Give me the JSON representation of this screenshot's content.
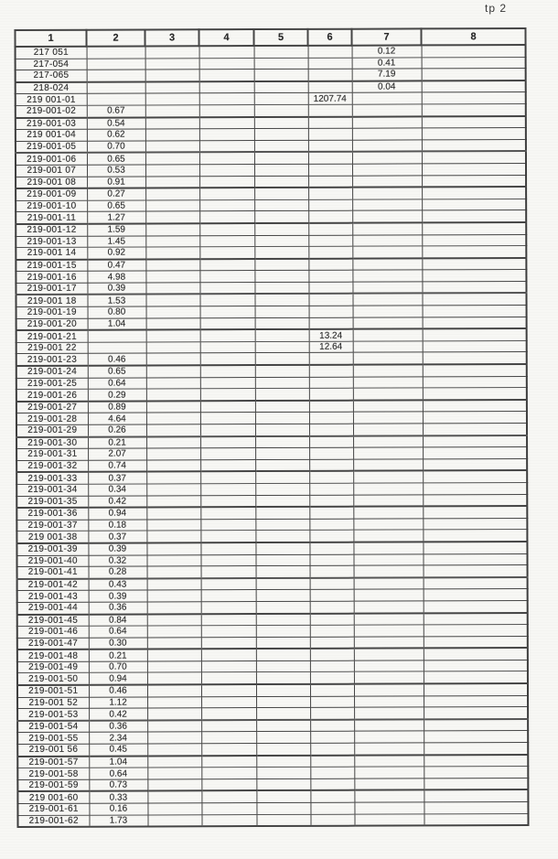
{
  "page": {
    "corner_label": "tp 2"
  },
  "table": {
    "headers": [
      "1",
      "2",
      "3",
      "4",
      "5",
      "6",
      "7",
      "8"
    ],
    "rows": [
      {
        "id": "217 051",
        "cells": [
          "",
          "",
          "",
          "",
          "",
          "0.12",
          ""
        ]
      },
      {
        "id": "217-054",
        "cells": [
          "",
          "",
          "",
          "",
          "",
          "0.41",
          ""
        ]
      },
      {
        "id": "217-065",
        "cells": [
          "",
          "",
          "",
          "",
          "",
          "7.19",
          ""
        ]
      },
      {
        "id": "218-024",
        "cells": [
          "",
          "",
          "",
          "",
          "",
          "0.04",
          ""
        ]
      },
      {
        "id": "219 001-01",
        "cells": [
          "",
          "",
          "",
          "",
          "1207.74",
          "",
          ""
        ]
      },
      {
        "id": "219-001-02",
        "cells": [
          "0.67",
          "",
          "",
          "",
          "",
          "",
          ""
        ]
      },
      {
        "id": "219-001-03",
        "cells": [
          "0.54",
          "",
          "",
          "",
          "",
          "",
          ""
        ]
      },
      {
        "id": "219 001-04",
        "cells": [
          "0.62",
          "",
          "",
          "",
          "",
          "",
          ""
        ]
      },
      {
        "id": "219-001-05",
        "cells": [
          "0.70",
          "",
          "",
          "",
          "",
          "",
          ""
        ]
      },
      {
        "id": "219-001-06",
        "cells": [
          "0.65",
          "",
          "",
          "",
          "",
          "",
          ""
        ]
      },
      {
        "id": "219-001 07",
        "cells": [
          "0.53",
          "",
          "",
          "",
          "",
          "",
          ""
        ]
      },
      {
        "id": "219-001 08",
        "cells": [
          "0.91",
          "",
          "",
          "",
          "",
          "",
          ""
        ]
      },
      {
        "id": "219-001-09",
        "cells": [
          "0.27",
          "",
          "",
          "",
          "",
          "",
          ""
        ]
      },
      {
        "id": "219-001-10",
        "cells": [
          "0.65",
          "",
          "",
          "",
          "",
          "",
          ""
        ]
      },
      {
        "id": "219-001-11",
        "cells": [
          "1.27",
          "",
          "",
          "",
          "",
          "",
          ""
        ]
      },
      {
        "id": "219-001-12",
        "cells": [
          "1.59",
          "",
          "",
          "",
          "",
          "",
          ""
        ]
      },
      {
        "id": "219-001-13",
        "cells": [
          "1.45",
          "",
          "",
          "",
          "",
          "",
          ""
        ]
      },
      {
        "id": "219-001 14",
        "cells": [
          "0.92",
          "",
          "",
          "",
          "",
          "",
          ""
        ]
      },
      {
        "id": "219-001-15",
        "cells": [
          "0.47",
          "",
          "",
          "",
          "",
          "",
          ""
        ]
      },
      {
        "id": "219-001-16",
        "cells": [
          "4.98",
          "",
          "",
          "",
          "",
          "",
          ""
        ]
      },
      {
        "id": "219-001-17",
        "cells": [
          "0.39",
          "",
          "",
          "",
          "",
          "",
          ""
        ]
      },
      {
        "id": "219-001 18",
        "cells": [
          "1.53",
          "",
          "",
          "",
          "",
          "",
          ""
        ]
      },
      {
        "id": "219-001-19",
        "cells": [
          "0.80",
          "",
          "",
          "",
          "",
          "",
          ""
        ]
      },
      {
        "id": "219-001-20",
        "cells": [
          "1.04",
          "",
          "",
          "",
          "",
          "",
          ""
        ]
      },
      {
        "id": "219-001-21",
        "cells": [
          "",
          "",
          "",
          "",
          "13.24",
          "",
          ""
        ]
      },
      {
        "id": "219-001 22",
        "cells": [
          "",
          "",
          "",
          "",
          "12.64",
          "",
          ""
        ]
      },
      {
        "id": "219-001-23",
        "cells": [
          "0.46",
          "",
          "",
          "",
          "",
          "",
          ""
        ]
      },
      {
        "id": "219-001-24",
        "cells": [
          "0.65",
          "",
          "",
          "",
          "",
          "",
          ""
        ]
      },
      {
        "id": "219-001-25",
        "cells": [
          "0.64",
          "",
          "",
          "",
          "",
          "",
          ""
        ]
      },
      {
        "id": "219-001-26",
        "cells": [
          "0.29",
          "",
          "",
          "",
          "",
          "",
          ""
        ]
      },
      {
        "id": "219-001-27",
        "cells": [
          "0.89",
          "",
          "",
          "",
          "",
          "",
          ""
        ]
      },
      {
        "id": "219-001-28",
        "cells": [
          "4.64",
          "",
          "",
          "",
          "",
          "",
          ""
        ]
      },
      {
        "id": "219-001-29",
        "cells": [
          "0.26",
          "",
          "",
          "",
          "",
          "",
          ""
        ]
      },
      {
        "id": "219-001-30",
        "cells": [
          "0.21",
          "",
          "",
          "",
          "",
          "",
          ""
        ]
      },
      {
        "id": "219-001-31",
        "cells": [
          "2.07",
          "",
          "",
          "",
          "",
          "",
          ""
        ]
      },
      {
        "id": "219-001-32",
        "cells": [
          "0.74",
          "",
          "",
          "",
          "",
          "",
          ""
        ]
      },
      {
        "id": "219-001-33",
        "cells": [
          "0.37",
          "",
          "",
          "",
          "",
          "",
          ""
        ]
      },
      {
        "id": "219-001-34",
        "cells": [
          "0.34",
          "",
          "",
          "",
          "",
          "",
          ""
        ]
      },
      {
        "id": "219-001-35",
        "cells": [
          "0.42",
          "",
          "",
          "",
          "",
          "",
          ""
        ]
      },
      {
        "id": "219-001-36",
        "cells": [
          "0.94",
          "",
          "",
          "",
          "",
          "",
          ""
        ]
      },
      {
        "id": "219-001-37",
        "cells": [
          "0.18",
          "",
          "",
          "",
          "",
          "",
          ""
        ]
      },
      {
        "id": "219 001-38",
        "cells": [
          "0.37",
          "",
          "",
          "",
          "",
          "",
          ""
        ]
      },
      {
        "id": "219-001-39",
        "cells": [
          "0.39",
          "",
          "",
          "",
          "",
          "",
          ""
        ]
      },
      {
        "id": "219-001-40",
        "cells": [
          "0.32",
          "",
          "",
          "",
          "",
          "",
          ""
        ]
      },
      {
        "id": "219-001-41",
        "cells": [
          "0.28",
          "",
          "",
          "",
          "",
          "",
          ""
        ]
      },
      {
        "id": "219-001-42",
        "cells": [
          "0.43",
          "",
          "",
          "",
          "",
          "",
          ""
        ]
      },
      {
        "id": "219-001-43",
        "cells": [
          "0.39",
          "",
          "",
          "",
          "",
          "",
          ""
        ]
      },
      {
        "id": "219-001-44",
        "cells": [
          "0.36",
          "",
          "",
          "",
          "",
          "",
          ""
        ]
      },
      {
        "id": "219-001-45",
        "cells": [
          "0.84",
          "",
          "",
          "",
          "",
          "",
          ""
        ]
      },
      {
        "id": "219-001-46",
        "cells": [
          "0.64",
          "",
          "",
          "",
          "",
          "",
          ""
        ]
      },
      {
        "id": "219-001-47",
        "cells": [
          "0.30",
          "",
          "",
          "",
          "",
          "",
          ""
        ]
      },
      {
        "id": "219-001-48",
        "cells": [
          "0.21",
          "",
          "",
          "",
          "",
          "",
          ""
        ]
      },
      {
        "id": "219-001-49",
        "cells": [
          "0.70",
          "",
          "",
          "",
          "",
          "",
          ""
        ]
      },
      {
        "id": "219-001-50",
        "cells": [
          "0.94",
          "",
          "",
          "",
          "",
          "",
          ""
        ]
      },
      {
        "id": "219-001-51",
        "cells": [
          "0.46",
          "",
          "",
          "",
          "",
          "",
          ""
        ]
      },
      {
        "id": "219-001 52",
        "cells": [
          "1.12",
          "",
          "",
          "",
          "",
          "",
          ""
        ]
      },
      {
        "id": "219-001-53",
        "cells": [
          "0.42",
          "",
          "",
          "",
          "",
          "",
          ""
        ]
      },
      {
        "id": "219-001-54",
        "cells": [
          "0.36",
          "",
          "",
          "",
          "",
          "",
          ""
        ]
      },
      {
        "id": "219-001-55",
        "cells": [
          "2.34",
          "",
          "",
          "",
          "",
          "",
          ""
        ]
      },
      {
        "id": "219-001 56",
        "cells": [
          "0.45",
          "",
          "",
          "",
          "",
          "",
          ""
        ]
      },
      {
        "id": "219-001-57",
        "cells": [
          "1.04",
          "",
          "",
          "",
          "",
          "",
          ""
        ]
      },
      {
        "id": "219-001-58",
        "cells": [
          "0.64",
          "",
          "",
          "",
          "",
          "",
          ""
        ]
      },
      {
        "id": "219-001-59",
        "cells": [
          "0.73",
          "",
          "",
          "",
          "",
          "",
          ""
        ]
      },
      {
        "id": "219 001-60",
        "cells": [
          "0.33",
          "",
          "",
          "",
          "",
          "",
          ""
        ]
      },
      {
        "id": "219-001-61",
        "cells": [
          "0.16",
          "",
          "",
          "",
          "",
          "",
          ""
        ]
      },
      {
        "id": "219-001-62",
        "cells": [
          "1.73",
          "",
          "",
          "",
          "",
          "",
          ""
        ]
      }
    ]
  }
}
